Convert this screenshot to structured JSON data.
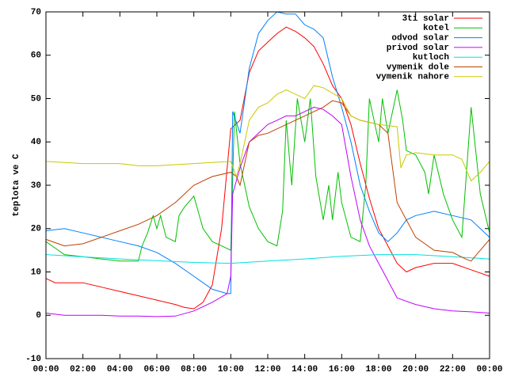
{
  "chart_data": {
    "type": "line",
    "y_label": "teplota ve C",
    "xlim": [
      0,
      24
    ],
    "ylim": [
      -10,
      70
    ],
    "xticks": [
      {
        "value": 0,
        "label": "00:00"
      },
      {
        "value": 2,
        "label": "02:00"
      },
      {
        "value": 4,
        "label": "04:00"
      },
      {
        "value": 6,
        "label": "06:00"
      },
      {
        "value": 8,
        "label": "08:00"
      },
      {
        "value": 10,
        "label": "10:00"
      },
      {
        "value": 12,
        "label": "12:00"
      },
      {
        "value": 14,
        "label": "14:00"
      },
      {
        "value": 16,
        "label": "16:00"
      },
      {
        "value": 18,
        "label": "18:00"
      },
      {
        "value": 20,
        "label": "20:00"
      },
      {
        "value": 22,
        "label": "22:00"
      },
      {
        "value": 24,
        "label": "00:00"
      }
    ],
    "yticks": [
      -10,
      0,
      10,
      20,
      30,
      40,
      50,
      60,
      70
    ],
    "grid": false,
    "legend": "top-right",
    "series": [
      {
        "name": "3ti solar",
        "color": "#ff0000",
        "x": [
          0,
          0.5,
          1,
          2,
          3,
          4,
          5,
          6,
          7,
          7.5,
          8,
          8.5,
          9,
          9.5,
          10,
          10.5,
          11,
          11.5,
          12,
          12.5,
          13,
          13.5,
          14,
          14.5,
          15,
          15.5,
          16,
          16.5,
          17,
          17.5,
          18,
          18.5,
          19,
          19.5,
          20,
          21,
          22,
          23,
          24
        ],
        "values": [
          8.5,
          7.5,
          7.5,
          7.5,
          6.5,
          5.5,
          4.5,
          3.5,
          2.5,
          1.8,
          1.5,
          3,
          7,
          20,
          43,
          45,
          56,
          61,
          63,
          65,
          66.5,
          65.5,
          64,
          62,
          58,
          53,
          50,
          44,
          35,
          27,
          20,
          16,
          12,
          10,
          11,
          12,
          12,
          10.5,
          9
        ]
      },
      {
        "name": "kotel",
        "color": "#00c000",
        "x": [
          0,
          0.5,
          1,
          2,
          3,
          4,
          5,
          5.2,
          5.5,
          5.8,
          6,
          6.2,
          6.5,
          7,
          7.2,
          7.5,
          8,
          8.5,
          9,
          9.5,
          10,
          10.2,
          10.5,
          11,
          11.5,
          12,
          12.5,
          12.8,
          13,
          13.3,
          13.6,
          14,
          14.3,
          14.6,
          15,
          15.3,
          15.5,
          15.8,
          16,
          16.5,
          17,
          17.3,
          17.5,
          18,
          18.2,
          18.5,
          19,
          19.3,
          19.5,
          20,
          20.5,
          20.7,
          21,
          21.5,
          22,
          22.5,
          23,
          23.5,
          24
        ],
        "values": [
          17,
          15.5,
          14,
          13.5,
          13,
          12.5,
          12.5,
          16,
          19,
          23,
          20,
          23,
          18,
          17,
          23,
          25,
          27.5,
          20,
          17,
          16,
          15,
          47,
          35,
          25,
          20,
          17,
          16,
          24,
          45,
          30,
          50,
          40,
          50,
          32,
          22,
          30,
          22,
          33,
          26,
          18,
          17,
          30,
          50,
          40,
          50,
          42,
          52,
          45,
          38,
          37,
          33,
          28,
          37,
          28,
          22,
          18,
          48,
          28,
          19
        ]
      },
      {
        "name": "odvod solar",
        "color": "#0080ff",
        "x": [
          0,
          1,
          2,
          3,
          4,
          5,
          6,
          7,
          8,
          9,
          9.8,
          10,
          10.1,
          10.5,
          11,
          11.5,
          12,
          12.5,
          13,
          13.5,
          14,
          14.5,
          15,
          15.5,
          16,
          16.5,
          17,
          17.5,
          18,
          18.5,
          19,
          19.5,
          20,
          21,
          22,
          23,
          23.5,
          24
        ],
        "values": [
          19.5,
          20,
          19,
          18,
          17,
          16,
          14.5,
          12,
          9,
          6,
          5,
          5,
          47,
          42,
          57,
          65,
          68,
          70,
          69.5,
          69.5,
          67,
          66,
          64,
          55,
          48,
          40,
          30,
          24,
          19,
          17,
          19,
          22,
          23,
          24,
          23,
          22,
          20,
          18
        ]
      },
      {
        "name": "privod solar",
        "color": "#c000ff",
        "x": [
          0,
          1,
          2,
          3,
          4,
          5,
          6,
          7,
          8,
          9,
          9.8,
          10,
          10.1,
          10.5,
          11,
          11.5,
          12,
          12.5,
          13,
          13.5,
          14,
          14.5,
          15,
          15.5,
          16,
          16.5,
          17,
          17.5,
          18,
          18.5,
          19,
          20,
          21,
          22,
          23,
          24
        ],
        "values": [
          0.5,
          0,
          0,
          0,
          -0.2,
          -0.2,
          -0.3,
          -0.2,
          1,
          3,
          5,
          9,
          28,
          34,
          40,
          42,
          44,
          45,
          46,
          46,
          47,
          48,
          47.5,
          46,
          44,
          32,
          22,
          16,
          12,
          8,
          4,
          2.5,
          1.5,
          1,
          0.8,
          0.5
        ]
      },
      {
        "name": "kutloch",
        "color": "#00e0e0",
        "x": [
          0,
          4,
          8,
          10,
          12,
          14,
          16,
          18,
          20,
          22,
          24
        ],
        "values": [
          14,
          13,
          12.2,
          12,
          12.5,
          13,
          13.6,
          14,
          14,
          13.5,
          13
        ]
      },
      {
        "name": "vymenik dole",
        "color": "#c04000",
        "x": [
          0,
          1,
          2,
          3,
          4,
          5,
          6,
          7,
          8,
          9,
          10,
          10.3,
          10.5,
          11,
          11.5,
          12,
          13,
          14,
          15,
          15.5,
          16,
          16.5,
          17,
          18,
          18.5,
          19,
          20,
          21,
          22,
          22.7,
          23,
          23.5,
          24
        ],
        "values": [
          17.5,
          16,
          16.5,
          18,
          19.5,
          21,
          23,
          26,
          30,
          32,
          33,
          32,
          30,
          40,
          41.5,
          42,
          44,
          46,
          48,
          49.5,
          49,
          46,
          45,
          44,
          42,
          26,
          18,
          15,
          14.5,
          13,
          12.5,
          15,
          17.5
        ]
      },
      {
        "name": "vymenik nahore",
        "color": "#c8c800",
        "x": [
          0,
          2,
          4,
          5,
          6,
          8,
          10,
          10.3,
          10.5,
          11,
          11.5,
          12,
          12.5,
          13,
          14,
          14.5,
          15,
          16,
          16.5,
          17,
          18,
          19,
          19.2,
          19.5,
          20,
          21,
          22,
          22.5,
          23,
          23.5,
          24
        ],
        "values": [
          35.5,
          35,
          35,
          34.5,
          34.5,
          35,
          35.5,
          32,
          35,
          45,
          48,
          49,
          51,
          52,
          50,
          53,
          52.5,
          50,
          46,
          45,
          44,
          43.5,
          34,
          37,
          37.5,
          37,
          37,
          36,
          31,
          33,
          35.5
        ]
      }
    ]
  }
}
